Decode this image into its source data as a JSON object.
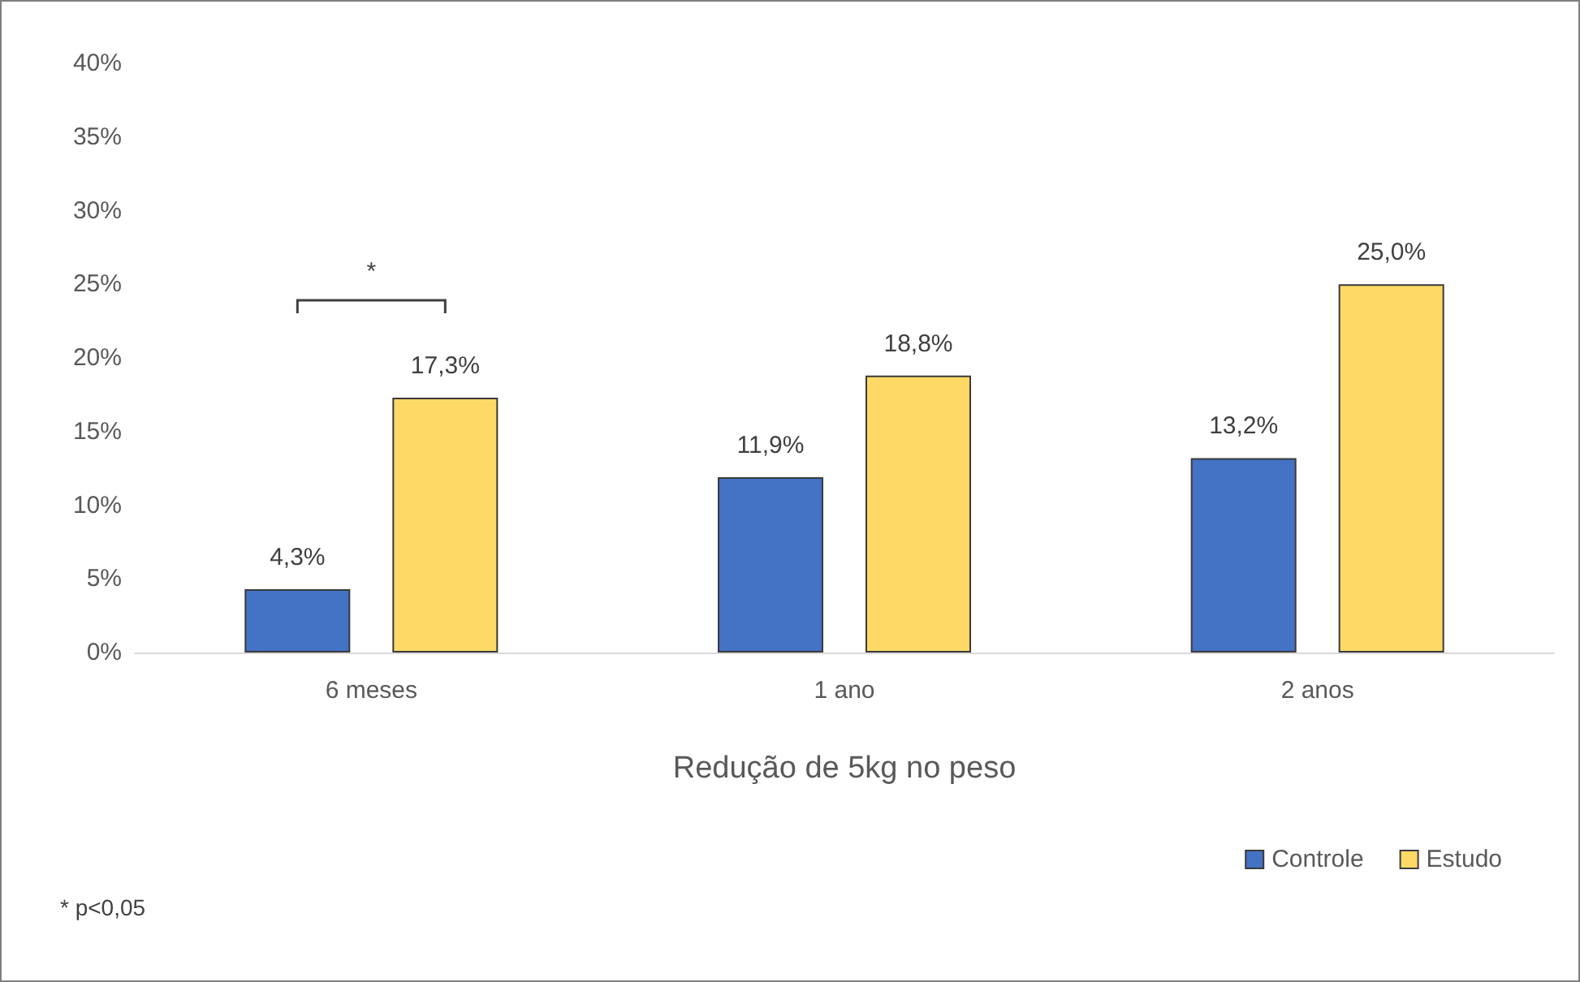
{
  "chart_data": {
    "type": "bar",
    "xlabel": "Redução de 5kg no peso",
    "categories": [
      "6 meses",
      "1 ano",
      "2 anos"
    ],
    "series": [
      {
        "name": "Controle",
        "color": "#4472c4",
        "values": [
          4.3,
          11.9,
          13.2
        ],
        "value_labels": [
          "4,3%",
          "11,9%",
          "13,2%"
        ]
      },
      {
        "name": "Estudo",
        "color": "#ffd966",
        "values": [
          17.3,
          18.8,
          25.0
        ],
        "value_labels": [
          "17,3%",
          "18,8%",
          "25,0%"
        ]
      }
    ],
    "ylim": [
      0,
      40
    ],
    "yticks": [
      {
        "value": 0,
        "label": "0%"
      },
      {
        "value": 5,
        "label": "5%"
      },
      {
        "value": 10,
        "label": "10%"
      },
      {
        "value": 15,
        "label": "15%"
      },
      {
        "value": 20,
        "label": "20%"
      },
      {
        "value": 25,
        "label": "25%"
      },
      {
        "value": 30,
        "label": "30%"
      },
      {
        "value": 35,
        "label": "35%"
      },
      {
        "value": 40,
        "label": "40%"
      }
    ],
    "grid": false,
    "legend": "bottom right",
    "annotations": [
      "*",
      "* p<0,05"
    ]
  }
}
